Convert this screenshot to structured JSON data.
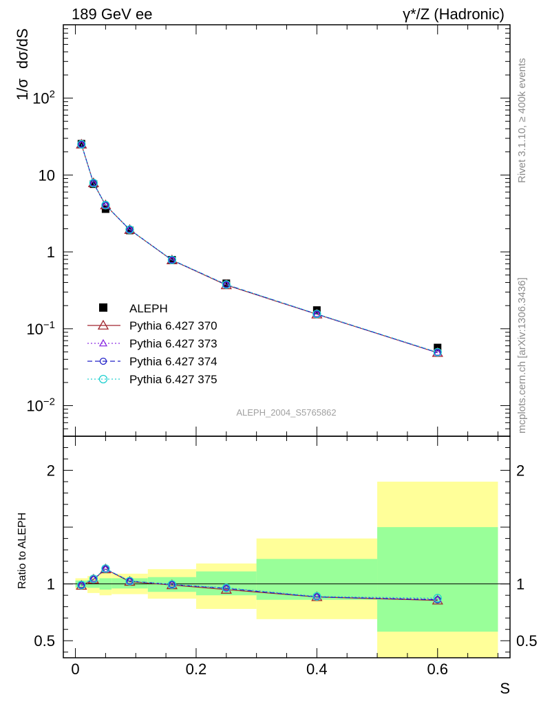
{
  "header": {
    "left": "189 GeV ee",
    "right": "γ*/Z (Hadronic)"
  },
  "side_labels": {
    "rivet": "Rivet 3.1.10, ≥ 400k events",
    "mcplots": "mcplots.cern.ch [arXiv:1306.3436]"
  },
  "watermark": "ALEPH_2004_S5765862",
  "chart_data": [
    {
      "type": "line",
      "title": "189 GeV ee",
      "xlabel": "S",
      "ylabel_parts": [
        "1/σ",
        "dσ/dS"
      ],
      "yscale": "log",
      "xlim": [
        -0.02,
        0.72
      ],
      "ylim": [
        0.004,
        900
      ],
      "y_ticks": [
        {
          "value": 0.01,
          "base": "10",
          "exp": "−2"
        },
        {
          "value": 0.1,
          "base": "10",
          "exp": "−1"
        },
        {
          "value": 1,
          "base": "1",
          "exp": ""
        },
        {
          "value": 10,
          "base": "10",
          "exp": ""
        },
        {
          "value": 100,
          "base": "10",
          "exp": "2"
        }
      ],
      "legend_position": "center-left",
      "x": [
        0.01,
        0.03,
        0.05,
        0.09,
        0.16,
        0.25,
        0.4,
        0.6
      ],
      "data": {
        "name": "ALEPH",
        "color": "#000000",
        "values": [
          25.5,
          7.6,
          3.6,
          1.9,
          0.79,
          0.39,
          0.175,
          0.057
        ],
        "rel_err_stat": [
          0.04,
          0.03,
          0.05,
          0.04,
          0.06,
          0.09,
          0.13,
          0.35
        ],
        "rel_err_total": [
          0.06,
          0.08,
          0.1,
          0.09,
          0.14,
          0.23,
          0.3,
          0.65
        ]
      },
      "series": [
        {
          "name": "Pythia 6.427 370",
          "color": "#a0242d",
          "dash": "solid",
          "marker": "triangle-open",
          "values": [
            25.0,
            7.85,
            4.05,
            1.94,
            0.78,
            0.37,
            0.154,
            0.0487
          ]
        },
        {
          "name": "Pythia 6.427 373",
          "color": "#8a2be2",
          "dash": "dotted",
          "marker": "triangle-open-small",
          "values": [
            25.1,
            7.86,
            4.05,
            1.95,
            0.785,
            0.376,
            0.155,
            0.049
          ]
        },
        {
          "name": "Pythia 6.427 374",
          "color": "#2020c8",
          "dash": "dashed",
          "marker": "circle-open",
          "values": [
            25.1,
            7.85,
            4.05,
            1.95,
            0.785,
            0.375,
            0.155,
            0.0489
          ]
        },
        {
          "name": "Pythia 6.427 375",
          "color": "#20d0d0",
          "dash": "dotted",
          "marker": "circle-open-large",
          "values": [
            25.1,
            7.86,
            4.06,
            1.95,
            0.786,
            0.376,
            0.156,
            0.0495
          ]
        }
      ]
    },
    {
      "type": "line",
      "ylabel": "Ratio to ALEPH",
      "xlabel": "S",
      "xlim": [
        -0.02,
        0.72
      ],
      "ylim": [
        0.35,
        2.3
      ],
      "y_ticks": [
        {
          "value": 0.5,
          "label": "0.5"
        },
        {
          "value": 1,
          "label": "1"
        },
        {
          "value": 2,
          "label": "2"
        }
      ],
      "x_ticks": [
        {
          "value": 0,
          "label": "0"
        },
        {
          "value": 0.2,
          "label": "0.2"
        },
        {
          "value": 0.4,
          "label": "0.4"
        },
        {
          "value": 0.6,
          "label": "0.6"
        }
      ],
      "bins": [
        [
          0,
          0.02
        ],
        [
          0.02,
          0.04
        ],
        [
          0.04,
          0.06
        ],
        [
          0.06,
          0.12
        ],
        [
          0.12,
          0.2
        ],
        [
          0.2,
          0.3
        ],
        [
          0.3,
          0.5
        ],
        [
          0.5,
          0.7
        ]
      ],
      "band_stat": [
        [
          0.97,
          1.03
        ],
        [
          0.965,
          1.035
        ],
        [
          0.95,
          1.05
        ],
        [
          0.96,
          1.05
        ],
        [
          0.93,
          1.06
        ],
        [
          0.9,
          1.11
        ],
        [
          0.86,
          1.22
        ],
        [
          0.58,
          1.5
        ]
      ],
      "band_total": [
        [
          0.95,
          1.05
        ],
        [
          0.92,
          1.07
        ],
        [
          0.9,
          1.1
        ],
        [
          0.91,
          1.09
        ],
        [
          0.87,
          1.13
        ],
        [
          0.78,
          1.18
        ],
        [
          0.69,
          1.4
        ],
        [
          0.3,
          1.9
        ]
      ],
      "x": [
        0.01,
        0.03,
        0.05,
        0.09,
        0.16,
        0.25,
        0.4,
        0.6
      ],
      "series": [
        {
          "name": "Pythia 6.427 370",
          "color": "#a0242d",
          "values": [
            0.985,
            1.04,
            1.13,
            1.02,
            0.99,
            0.95,
            0.885,
            0.855
          ]
        },
        {
          "name": "Pythia 6.427 373",
          "color": "#8a2be2",
          "values": [
            0.99,
            1.045,
            1.13,
            1.025,
            0.995,
            0.965,
            0.89,
            0.865
          ]
        },
        {
          "name": "Pythia 6.427 374",
          "color": "#2020c8",
          "values": [
            0.99,
            1.04,
            1.13,
            1.025,
            0.995,
            0.96,
            0.885,
            0.86
          ]
        },
        {
          "name": "Pythia 6.427 375",
          "color": "#20d0d0",
          "values": [
            0.99,
            1.045,
            1.135,
            1.025,
            0.995,
            0.965,
            0.89,
            0.875
          ]
        }
      ]
    }
  ]
}
